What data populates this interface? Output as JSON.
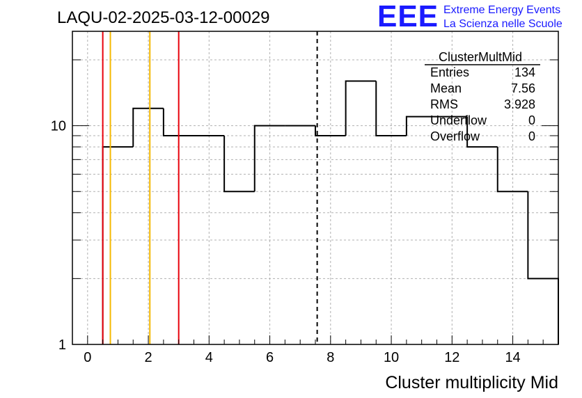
{
  "header": {
    "title": "LAQU-02-2025-03-12-00029",
    "logo_text": "EEE",
    "logo_line1": "Extreme Energy Events",
    "logo_line2": "La Scienza nelle Scuole",
    "logo_color": "#1a1aff"
  },
  "stats_box": {
    "name": "ClusterMultMid",
    "rows": [
      {
        "label": "Entries",
        "value": "134"
      },
      {
        "label": "Mean",
        "value": "7.56"
      },
      {
        "label": "RMS",
        "value": "3.928"
      },
      {
        "label": "Underflow",
        "value": "0"
      },
      {
        "label": "Overflow",
        "value": "0"
      }
    ]
  },
  "chart_data": {
    "type": "bar",
    "style": "step-histogram",
    "xlabel": "Cluster multiplicity Mid",
    "ylabel": "",
    "xlim": [
      -0.5,
      15.5
    ],
    "ylim": [
      1,
      27
    ],
    "ylog": true,
    "grid": true,
    "x_ticks": [
      0,
      2,
      4,
      6,
      8,
      10,
      12,
      14
    ],
    "y_tick_labels": [
      {
        "value": 1,
        "label": "1"
      },
      {
        "value": 10,
        "label": "10"
      }
    ],
    "bin_edges": [
      0.5,
      1.5,
      2.5,
      3.5,
      4.5,
      5.5,
      6.5,
      7.5,
      8.5,
      9.5,
      10.5,
      11.5,
      12.5,
      13.5,
      14.5,
      15.5
    ],
    "values": [
      8,
      12,
      9,
      9,
      5,
      10,
      10,
      9,
      16,
      9,
      11,
      11,
      8,
      5,
      2
    ],
    "vertical_lines": [
      {
        "x": 0.5,
        "color": "#e8000b",
        "style": "solid"
      },
      {
        "x": 0.75,
        "color": "#f5b800",
        "style": "solid"
      },
      {
        "x": 2.05,
        "color": "#f5b800",
        "style": "solid"
      },
      {
        "x": 3.0,
        "color": "#e8000b",
        "style": "solid"
      },
      {
        "x": 7.56,
        "color": "#000000",
        "style": "dashed"
      }
    ]
  }
}
